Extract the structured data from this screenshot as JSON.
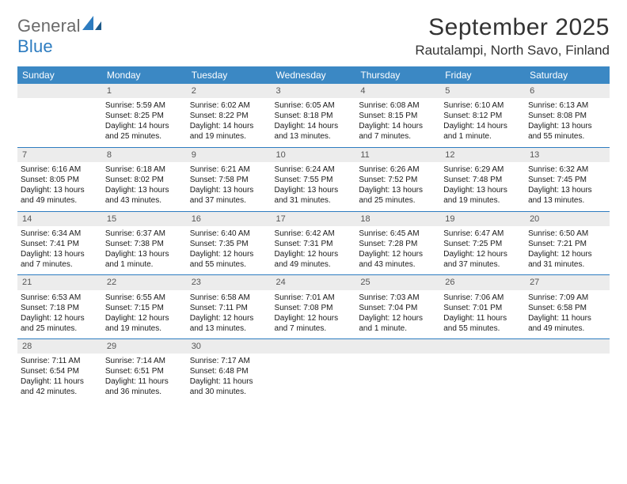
{
  "brand": {
    "text1": "General",
    "text2": "Blue",
    "text1_color": "#6a6a6a",
    "text2_color": "#2d7cc0"
  },
  "title": "September 2025",
  "location": "Rautalampi, North Savo, Finland",
  "colors": {
    "header_bg": "#3b88c4",
    "header_fg": "#ffffff",
    "daynum_bg": "#ececec",
    "daynum_fg": "#555555",
    "cell_border": "#2d7cc0",
    "body_text": "#1a1a1a"
  },
  "daysOfWeek": [
    "Sunday",
    "Monday",
    "Tuesday",
    "Wednesday",
    "Thursday",
    "Friday",
    "Saturday"
  ],
  "weeks": [
    [
      null,
      {
        "n": "1",
        "sr": "5:59 AM",
        "ss": "8:25 PM",
        "dl": "14 hours and 25 minutes."
      },
      {
        "n": "2",
        "sr": "6:02 AM",
        "ss": "8:22 PM",
        "dl": "14 hours and 19 minutes."
      },
      {
        "n": "3",
        "sr": "6:05 AM",
        "ss": "8:18 PM",
        "dl": "14 hours and 13 minutes."
      },
      {
        "n": "4",
        "sr": "6:08 AM",
        "ss": "8:15 PM",
        "dl": "14 hours and 7 minutes."
      },
      {
        "n": "5",
        "sr": "6:10 AM",
        "ss": "8:12 PM",
        "dl": "14 hours and 1 minute."
      },
      {
        "n": "6",
        "sr": "6:13 AM",
        "ss": "8:08 PM",
        "dl": "13 hours and 55 minutes."
      }
    ],
    [
      {
        "n": "7",
        "sr": "6:16 AM",
        "ss": "8:05 PM",
        "dl": "13 hours and 49 minutes."
      },
      {
        "n": "8",
        "sr": "6:18 AM",
        "ss": "8:02 PM",
        "dl": "13 hours and 43 minutes."
      },
      {
        "n": "9",
        "sr": "6:21 AM",
        "ss": "7:58 PM",
        "dl": "13 hours and 37 minutes."
      },
      {
        "n": "10",
        "sr": "6:24 AM",
        "ss": "7:55 PM",
        "dl": "13 hours and 31 minutes."
      },
      {
        "n": "11",
        "sr": "6:26 AM",
        "ss": "7:52 PM",
        "dl": "13 hours and 25 minutes."
      },
      {
        "n": "12",
        "sr": "6:29 AM",
        "ss": "7:48 PM",
        "dl": "13 hours and 19 minutes."
      },
      {
        "n": "13",
        "sr": "6:32 AM",
        "ss": "7:45 PM",
        "dl": "13 hours and 13 minutes."
      }
    ],
    [
      {
        "n": "14",
        "sr": "6:34 AM",
        "ss": "7:41 PM",
        "dl": "13 hours and 7 minutes."
      },
      {
        "n": "15",
        "sr": "6:37 AM",
        "ss": "7:38 PM",
        "dl": "13 hours and 1 minute."
      },
      {
        "n": "16",
        "sr": "6:40 AM",
        "ss": "7:35 PM",
        "dl": "12 hours and 55 minutes."
      },
      {
        "n": "17",
        "sr": "6:42 AM",
        "ss": "7:31 PM",
        "dl": "12 hours and 49 minutes."
      },
      {
        "n": "18",
        "sr": "6:45 AM",
        "ss": "7:28 PM",
        "dl": "12 hours and 43 minutes."
      },
      {
        "n": "19",
        "sr": "6:47 AM",
        "ss": "7:25 PM",
        "dl": "12 hours and 37 minutes."
      },
      {
        "n": "20",
        "sr": "6:50 AM",
        "ss": "7:21 PM",
        "dl": "12 hours and 31 minutes."
      }
    ],
    [
      {
        "n": "21",
        "sr": "6:53 AM",
        "ss": "7:18 PM",
        "dl": "12 hours and 25 minutes."
      },
      {
        "n": "22",
        "sr": "6:55 AM",
        "ss": "7:15 PM",
        "dl": "12 hours and 19 minutes."
      },
      {
        "n": "23",
        "sr": "6:58 AM",
        "ss": "7:11 PM",
        "dl": "12 hours and 13 minutes."
      },
      {
        "n": "24",
        "sr": "7:01 AM",
        "ss": "7:08 PM",
        "dl": "12 hours and 7 minutes."
      },
      {
        "n": "25",
        "sr": "7:03 AM",
        "ss": "7:04 PM",
        "dl": "12 hours and 1 minute."
      },
      {
        "n": "26",
        "sr": "7:06 AM",
        "ss": "7:01 PM",
        "dl": "11 hours and 55 minutes."
      },
      {
        "n": "27",
        "sr": "7:09 AM",
        "ss": "6:58 PM",
        "dl": "11 hours and 49 minutes."
      }
    ],
    [
      {
        "n": "28",
        "sr": "7:11 AM",
        "ss": "6:54 PM",
        "dl": "11 hours and 42 minutes."
      },
      {
        "n": "29",
        "sr": "7:14 AM",
        "ss": "6:51 PM",
        "dl": "11 hours and 36 minutes."
      },
      {
        "n": "30",
        "sr": "7:17 AM",
        "ss": "6:48 PM",
        "dl": "11 hours and 30 minutes."
      },
      null,
      null,
      null,
      null
    ]
  ],
  "labels": {
    "sunrise": "Sunrise:",
    "sunset": "Sunset:",
    "daylight": "Daylight:"
  }
}
